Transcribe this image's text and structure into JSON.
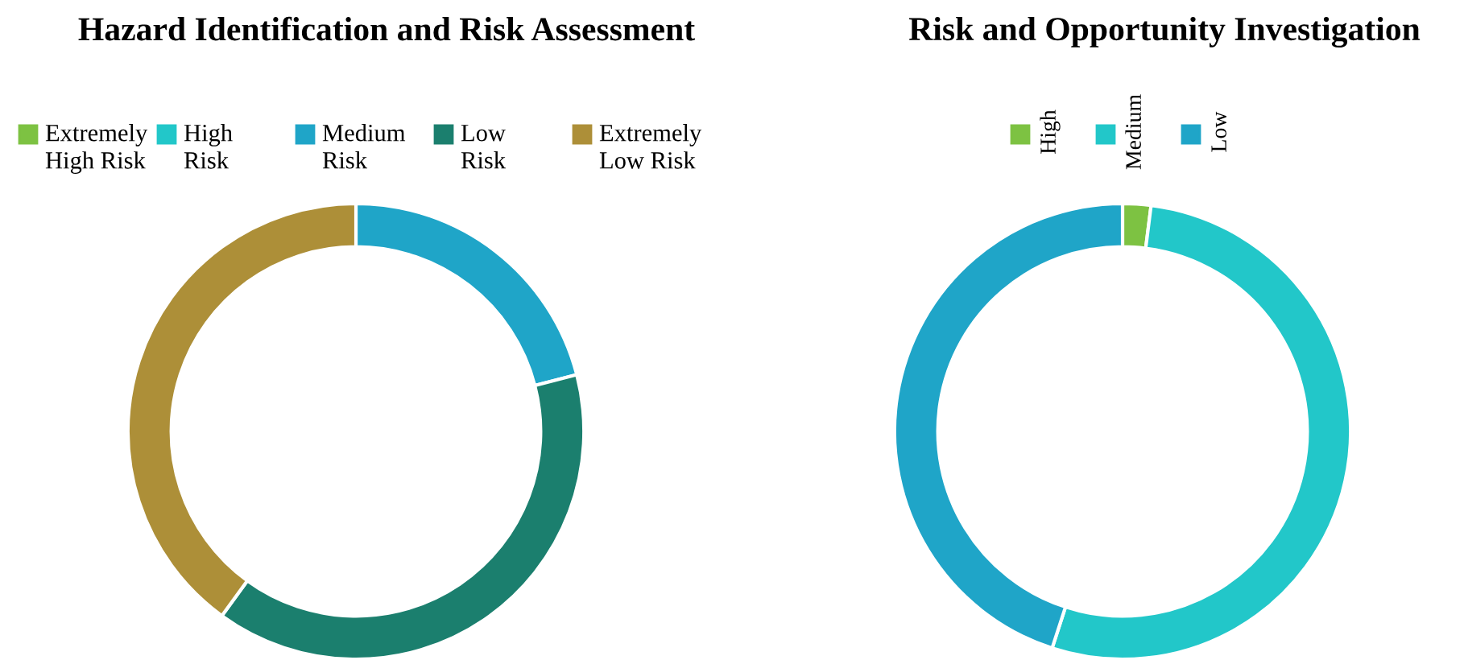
{
  "chart_data": [
    {
      "type": "donut",
      "title": "Hazard Identification and Risk Assessment",
      "legend": "top",
      "categories": [
        "Extremely High Risk",
        "High Risk",
        "Medium Risk",
        "Low Risk",
        "Extremely Low Risk"
      ],
      "values": [
        0,
        0,
        21,
        39,
        40
      ],
      "colors": [
        "#7dc242",
        "#22c7c9",
        "#1fa5c8",
        "#1b7f6e",
        "#ad8f38"
      ]
    },
    {
      "type": "donut",
      "title": "Risk and Opportunity Investigation",
      "legend": "top",
      "categories": [
        "High",
        "Medium",
        "Low"
      ],
      "values": [
        2,
        53,
        45
      ],
      "colors": [
        "#7dc242",
        "#22c7c9",
        "#1fa5c8"
      ]
    }
  ]
}
